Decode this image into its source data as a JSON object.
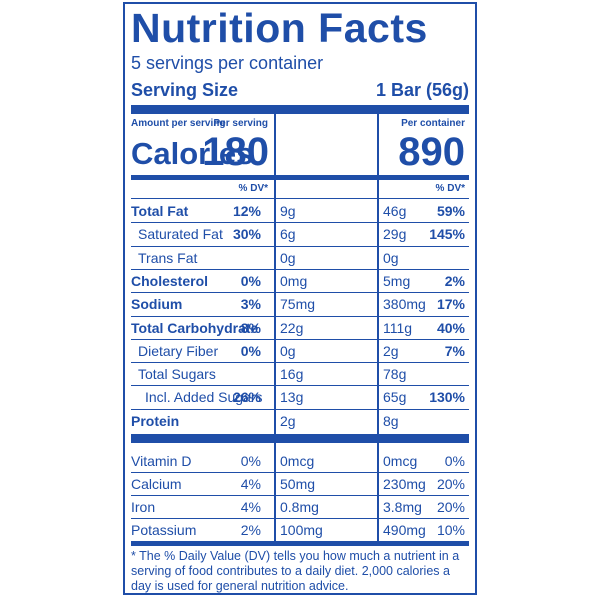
{
  "title": "Nutrition Facts",
  "servings": "5 servings per container",
  "serving_size_label": "Serving Size",
  "serving_size_value": "1 Bar (56g)",
  "amount_per_serving": "Amount per serving",
  "calories_label": "Calories",
  "per_serving_label": "Per serving",
  "per_container_label": "Per container",
  "calories_serving": "180",
  "calories_container": "890",
  "dv_label": "% DV*",
  "nutrients": [
    {
      "name": "Total Fat",
      "bold": true,
      "indent": 0,
      "s_amt": "9g",
      "s_dv": "12%",
      "c_amt": "46g",
      "c_dv": "59%"
    },
    {
      "name": "Saturated Fat",
      "bold": false,
      "indent": 1,
      "s_amt": "6g",
      "s_dv": "30%",
      "c_amt": "29g",
      "c_dv": "145%"
    },
    {
      "name": "Trans Fat",
      "bold": false,
      "indent": 1,
      "s_amt": "0g",
      "s_dv": "",
      "c_amt": "0g",
      "c_dv": ""
    },
    {
      "name": "Cholesterol",
      "bold": true,
      "indent": 0,
      "s_amt": "0mg",
      "s_dv": "0%",
      "c_amt": "5mg",
      "c_dv": "2%"
    },
    {
      "name": "Sodium",
      "bold": true,
      "indent": 0,
      "s_amt": "75mg",
      "s_dv": "3%",
      "c_amt": "380mg",
      "c_dv": "17%"
    },
    {
      "name": "Total Carbohydrate",
      "bold": true,
      "indent": 0,
      "s_amt": "22g",
      "s_dv": "8%",
      "c_amt": "111g",
      "c_dv": "40%"
    },
    {
      "name": "Dietary Fiber",
      "bold": false,
      "indent": 1,
      "s_amt": "0g",
      "s_dv": "0%",
      "c_amt": "2g",
      "c_dv": "7%"
    },
    {
      "name": "Total Sugars",
      "bold": false,
      "indent": 1,
      "s_amt": "16g",
      "s_dv": "",
      "c_amt": "78g",
      "c_dv": ""
    },
    {
      "name": "Incl. Added Sugars",
      "bold": false,
      "indent": 2,
      "s_amt": "13g",
      "s_dv": "26%",
      "c_amt": "65g",
      "c_dv": "130%"
    },
    {
      "name": "Protein",
      "bold": true,
      "indent": 0,
      "s_amt": "2g",
      "s_dv": "",
      "c_amt": "8g",
      "c_dv": ""
    }
  ],
  "vitamins": [
    {
      "name": "Vitamin D",
      "s_amt": "0mcg",
      "s_dv": "0%",
      "c_amt": "0mcg",
      "c_dv": "0%"
    },
    {
      "name": "Calcium",
      "s_amt": "50mg",
      "s_dv": "4%",
      "c_amt": "230mg",
      "c_dv": "20%"
    },
    {
      "name": "Iron",
      "s_amt": "0.8mg",
      "s_dv": "4%",
      "c_amt": "3.8mg",
      "c_dv": "20%"
    },
    {
      "name": "Potassium",
      "s_amt": "100mg",
      "s_dv": "2%",
      "c_amt": "490mg",
      "c_dv": "10%"
    }
  ],
  "footnote": "* The % Daily Value (DV) tells you how much a nutrient in a serving of food contributes to a daily diet. 2,000 calories a day is used for general nutrition advice.",
  "colors": {
    "ink": "#1f4ea8"
  }
}
